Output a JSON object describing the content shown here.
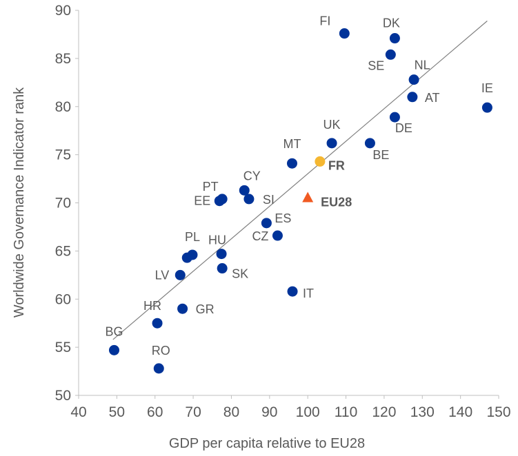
{
  "chart_data": {
    "type": "scatter",
    "xlabel": "GDP per capita relative to EU28",
    "ylabel": "Worldwide Governance Indicator rank",
    "xlim": [
      40,
      150
    ],
    "ylim": [
      50,
      90
    ],
    "xticks": [
      "40",
      "50",
      "60",
      "70",
      "80",
      "90",
      "100",
      "110",
      "120",
      "130",
      "140",
      "150"
    ],
    "yticks": [
      "50",
      "55",
      "60",
      "65",
      "70",
      "75",
      "80",
      "85",
      "90"
    ],
    "grid": false,
    "legend": "none",
    "trendline": {
      "x": [
        49,
        147
      ],
      "y": [
        55.8,
        88.9
      ]
    },
    "colors": {
      "country": "#003399",
      "france": "#F5B731",
      "eu28": "#F05A22",
      "trendline": "#808080"
    },
    "points": [
      {
        "label": "FI",
        "x": 109.6,
        "y": 87.6
      },
      {
        "label": "DK",
        "x": 122.8,
        "y": 87.1
      },
      {
        "label": "SE",
        "x": 121.7,
        "y": 85.4
      },
      {
        "label": "NL",
        "x": 127.8,
        "y": 82.8
      },
      {
        "label": "AT",
        "x": 127.4,
        "y": 81.0
      },
      {
        "label": "IE",
        "x": 147.0,
        "y": 79.9
      },
      {
        "label": "DE",
        "x": 122.8,
        "y": 78.9
      },
      {
        "label": "UK",
        "x": 106.3,
        "y": 76.2
      },
      {
        "label": "BE",
        "x": 116.3,
        "y": 76.2
      },
      {
        "label": "MT",
        "x": 95.9,
        "y": 74.1
      },
      {
        "label": "FR",
        "x": 103.2,
        "y": 74.3,
        "highlight": "france"
      },
      {
        "label": "CY",
        "x": 83.4,
        "y": 71.3
      },
      {
        "label": "PT",
        "x": 77.6,
        "y": 70.4
      },
      {
        "label": "EE",
        "x": 76.9,
        "y": 70.2
      },
      {
        "label": "SI",
        "x": 84.6,
        "y": 70.4
      },
      {
        "label": "EU28",
        "x": 100.0,
        "y": 70.5,
        "highlight": "eu28"
      },
      {
        "label": "ES",
        "x": 89.2,
        "y": 67.9
      },
      {
        "label": "CZ",
        "x": 92.1,
        "y": 66.6
      },
      {
        "label": "PL",
        "x": 69.8,
        "y": 64.6
      },
      {
        "label": "",
        "x": 68.4,
        "y": 64.3
      },
      {
        "label": "HU",
        "x": 77.4,
        "y": 64.7
      },
      {
        "label": "SK",
        "x": 77.6,
        "y": 63.2
      },
      {
        "label": "LV",
        "x": 66.6,
        "y": 62.5
      },
      {
        "label": "IT",
        "x": 96.0,
        "y": 60.8
      },
      {
        "label": "GR",
        "x": 67.2,
        "y": 59.0
      },
      {
        "label": "HR",
        "x": 60.6,
        "y": 57.5
      },
      {
        "label": "BG",
        "x": 49.3,
        "y": 54.7
      },
      {
        "label": "RO",
        "x": 61.0,
        "y": 52.8
      }
    ]
  }
}
